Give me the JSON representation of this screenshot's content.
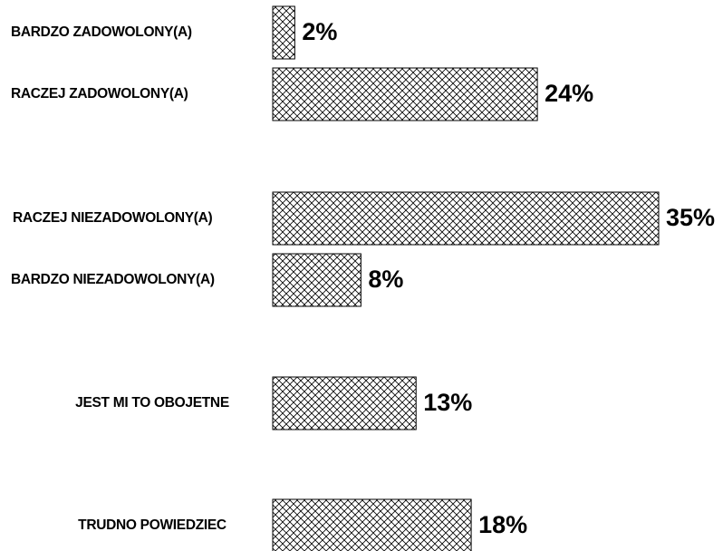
{
  "chart_data": {
    "type": "bar",
    "orientation": "horizontal",
    "categories": [
      "BARDZO ZADOWOLONY(A)",
      "RACZEJ ZADOWOLONY(A)",
      "RACZEJ NIEZADOWOLONY(A)",
      "BARDZO NIEZADOWOLONY(A)",
      "JEST MI TO OBOJETNE",
      "TRUDNO POWIEDZIEC"
    ],
    "values": [
      2,
      24,
      35,
      8,
      13,
      18
    ],
    "value_labels": [
      "2%",
      "24%",
      "35%",
      "8%",
      "13%",
      "18%"
    ],
    "color": "#000000"
  }
}
